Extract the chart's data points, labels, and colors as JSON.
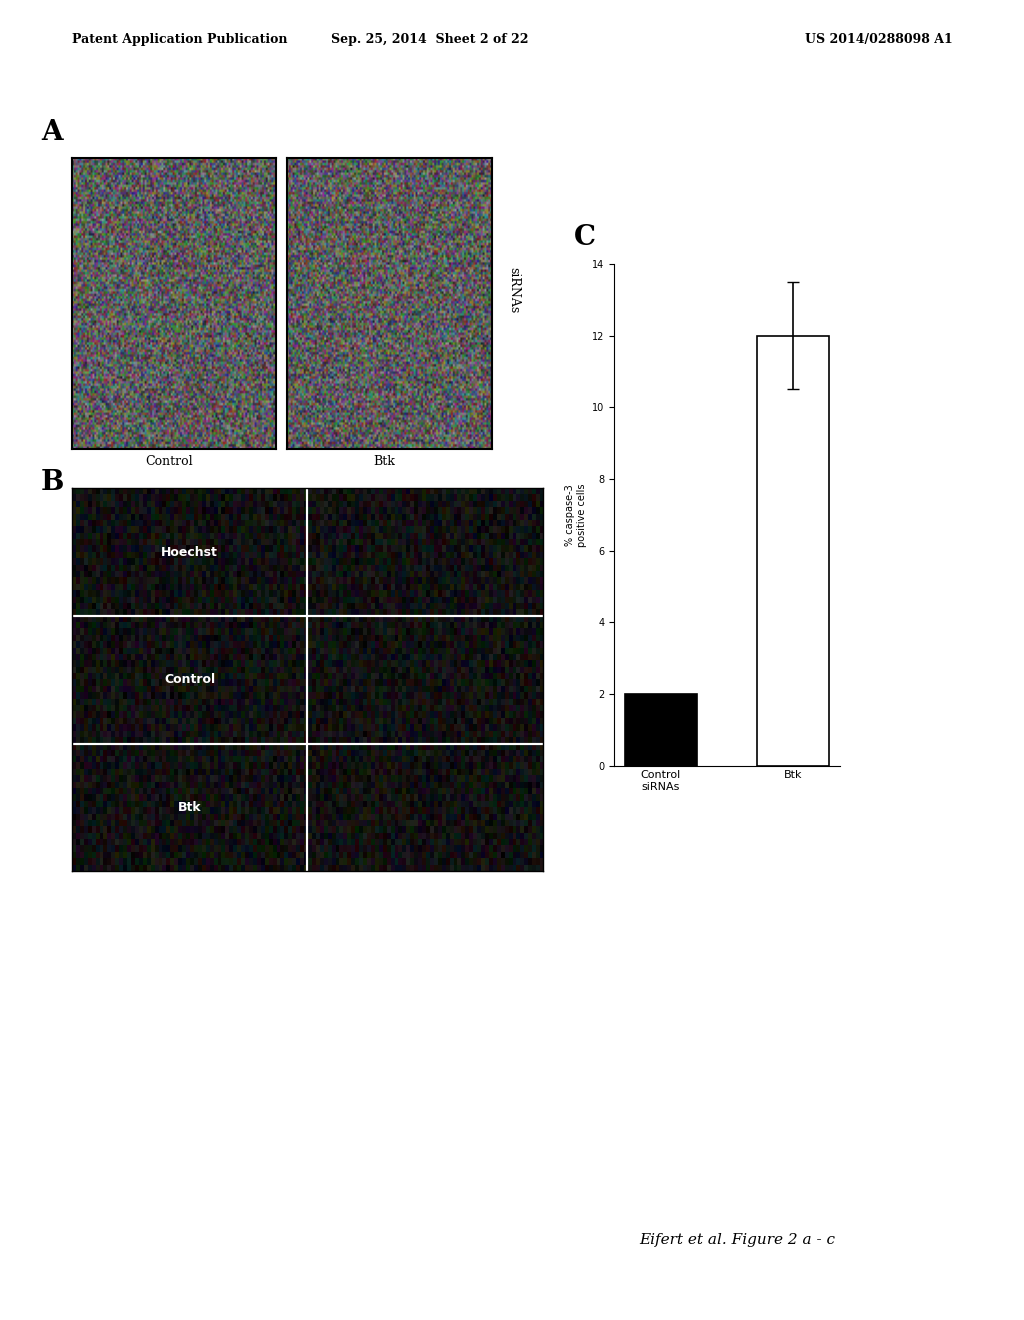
{
  "header_left": "Patent Application Publication",
  "header_mid": "Sep. 25, 2014  Sheet 2 of 22",
  "header_right": "US 2014/0288098 A1",
  "footer": "Eifert et al. Figure 2 a - c",
  "panel_a_label": "A",
  "panel_b_label": "B",
  "panel_c_label": "C",
  "panel_a_col_labels": [
    "Control",
    "Btk"
  ],
  "panel_a_row_label": "siRNAs",
  "panel_b_row_labels": [
    "Hoechst",
    "Control",
    "Btk"
  ],
  "panel_c_ylabel": "% caspase-3\npositive cells",
  "panel_c_categories": [
    "Control\nsiRNAs",
    "Btk"
  ],
  "panel_c_values": [
    2.0,
    12.0
  ],
  "panel_c_error_bar": 1.5,
  "panel_c_ylim": [
    0,
    14
  ],
  "panel_c_yticks": [
    0,
    2,
    4,
    6,
    8,
    10,
    12,
    14
  ],
  "bg_color": "#ffffff",
  "border_color": "#000000"
}
